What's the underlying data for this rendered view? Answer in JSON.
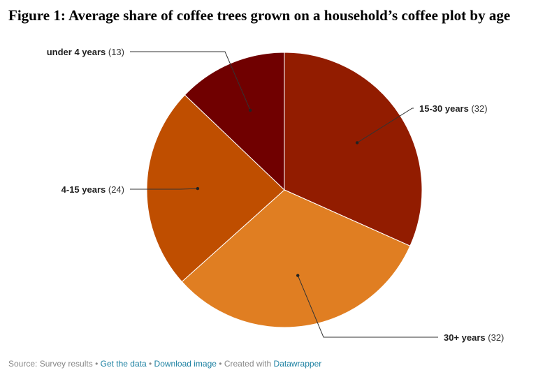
{
  "chart_data": {
    "type": "pie",
    "title": "Figure 1: Average share of coffee trees grown on a household’s coffee plot by age",
    "slices": [
      {
        "label": "15-30 years",
        "value": 32,
        "color": "#921c00"
      },
      {
        "label": "30+ years",
        "value": 32,
        "color": "#e07e22"
      },
      {
        "label": "4-15 years",
        "value": 24,
        "color": "#bf4e00"
      },
      {
        "label": "under 4 years",
        "value": 13,
        "color": "#700000"
      }
    ]
  },
  "footer": {
    "source": "Source: Survey results",
    "get_data": "Get the data",
    "download": "Download image",
    "created_with": "Created with",
    "datawrapper": "Datawrapper",
    "separator": "•"
  }
}
